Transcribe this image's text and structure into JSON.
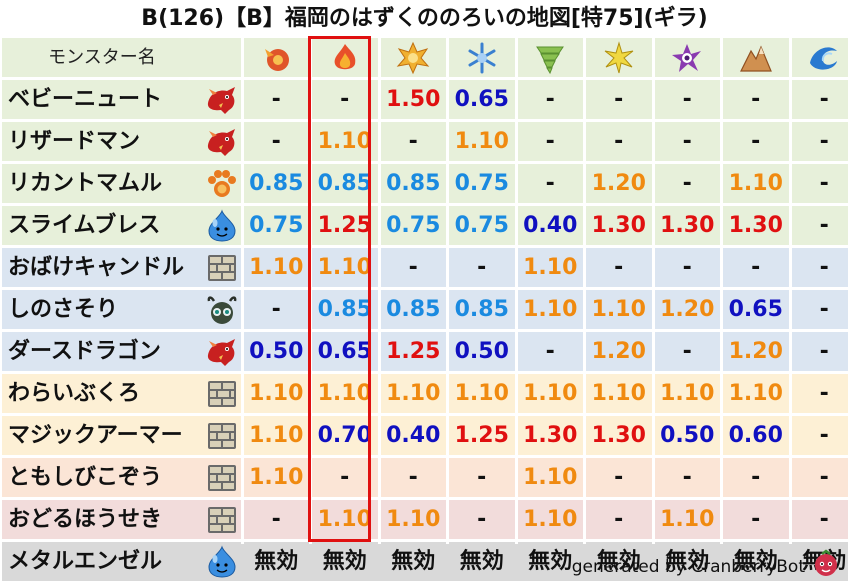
{
  "title": "B(126)【B】福岡のはずくののろいの地図[特75](ギラ)",
  "header": {
    "name_label": "モンスター名",
    "elements": [
      {
        "icon": "fire-orb-icon",
        "color": "#e0552a"
      },
      {
        "icon": "flame-icon",
        "color": "#e8502a"
      },
      {
        "icon": "explosion-icon",
        "color": "#e0b020"
      },
      {
        "icon": "ice-crystal-icon",
        "color": "#4a90e2"
      },
      {
        "icon": "tornado-icon",
        "color": "#7ab040"
      },
      {
        "icon": "lightning-icon",
        "color": "#e0c020"
      },
      {
        "icon": "darkness-swirl-icon",
        "color": "#8a3ab0"
      },
      {
        "icon": "earth-mountain-icon",
        "color": "#c08040"
      },
      {
        "icon": "water-wave-icon",
        "color": "#2070c0"
      }
    ]
  },
  "colors": {
    "orange": "#f08a10",
    "lightblue": "#1a8ae0",
    "red": "#e01010",
    "navy": "#1010c0",
    "dark": "#111111",
    "highlight": "#e01010"
  },
  "rows": [
    {
      "name": "ベビーニュート",
      "icon": "red-dragon-icon",
      "bg": "#e7f0da",
      "cells": [
        {
          "v": "-",
          "c": "dark"
        },
        {
          "v": "-",
          "c": "dark"
        },
        {
          "v": "1.50",
          "c": "red"
        },
        {
          "v": "0.65",
          "c": "navy"
        },
        {
          "v": "-",
          "c": "dark"
        },
        {
          "v": "-",
          "c": "dark"
        },
        {
          "v": "-",
          "c": "dark"
        },
        {
          "v": "-",
          "c": "dark"
        },
        {
          "v": "-",
          "c": "dark"
        }
      ]
    },
    {
      "name": "リザードマン",
      "icon": "red-dragon-icon",
      "bg": "#e7f0da",
      "cells": [
        {
          "v": "-",
          "c": "dark"
        },
        {
          "v": "1.10",
          "c": "orange"
        },
        {
          "v": "-",
          "c": "dark"
        },
        {
          "v": "1.10",
          "c": "orange"
        },
        {
          "v": "-",
          "c": "dark"
        },
        {
          "v": "-",
          "c": "dark"
        },
        {
          "v": "-",
          "c": "dark"
        },
        {
          "v": "-",
          "c": "dark"
        },
        {
          "v": "-",
          "c": "dark"
        }
      ]
    },
    {
      "name": "リカントマムル",
      "icon": "paw-icon",
      "bg": "#e7f0da",
      "cells": [
        {
          "v": "0.85",
          "c": "lightblue"
        },
        {
          "v": "0.85",
          "c": "lightblue"
        },
        {
          "v": "0.85",
          "c": "lightblue"
        },
        {
          "v": "0.75",
          "c": "lightblue"
        },
        {
          "v": "-",
          "c": "dark"
        },
        {
          "v": "1.20",
          "c": "orange"
        },
        {
          "v": "-",
          "c": "dark"
        },
        {
          "v": "1.10",
          "c": "orange"
        },
        {
          "v": "-",
          "c": "dark"
        }
      ]
    },
    {
      "name": "スライムブレス",
      "icon": "slime-icon",
      "bg": "#e7f0da",
      "cells": [
        {
          "v": "0.75",
          "c": "lightblue"
        },
        {
          "v": "1.25",
          "c": "red"
        },
        {
          "v": "0.75",
          "c": "lightblue"
        },
        {
          "v": "0.75",
          "c": "lightblue"
        },
        {
          "v": "0.40",
          "c": "navy"
        },
        {
          "v": "1.30",
          "c": "red"
        },
        {
          "v": "1.30",
          "c": "red"
        },
        {
          "v": "1.30",
          "c": "red"
        },
        {
          "v": "-",
          "c": "dark"
        }
      ]
    },
    {
      "name": "おばけキャンドル",
      "icon": "brick-icon",
      "bg": "#dbe5f1",
      "cells": [
        {
          "v": "1.10",
          "c": "orange"
        },
        {
          "v": "1.10",
          "c": "orange"
        },
        {
          "v": "-",
          "c": "dark"
        },
        {
          "v": "-",
          "c": "dark"
        },
        {
          "v": "1.10",
          "c": "orange"
        },
        {
          "v": "-",
          "c": "dark"
        },
        {
          "v": "-",
          "c": "dark"
        },
        {
          "v": "-",
          "c": "dark"
        },
        {
          "v": "-",
          "c": "dark"
        }
      ]
    },
    {
      "name": "しのさそり",
      "icon": "bug-icon",
      "bg": "#dbe5f1",
      "cells": [
        {
          "v": "-",
          "c": "dark"
        },
        {
          "v": "0.85",
          "c": "lightblue"
        },
        {
          "v": "0.85",
          "c": "lightblue"
        },
        {
          "v": "0.85",
          "c": "lightblue"
        },
        {
          "v": "1.10",
          "c": "orange"
        },
        {
          "v": "1.10",
          "c": "orange"
        },
        {
          "v": "1.20",
          "c": "orange"
        },
        {
          "v": "0.65",
          "c": "navy"
        },
        {
          "v": "-",
          "c": "dark"
        }
      ]
    },
    {
      "name": "ダースドラゴン",
      "icon": "red-dragon-icon",
      "bg": "#dbe5f1",
      "cells": [
        {
          "v": "0.50",
          "c": "navy"
        },
        {
          "v": "0.65",
          "c": "navy"
        },
        {
          "v": "1.25",
          "c": "red"
        },
        {
          "v": "0.50",
          "c": "navy"
        },
        {
          "v": "-",
          "c": "dark"
        },
        {
          "v": "1.20",
          "c": "orange"
        },
        {
          "v": "-",
          "c": "dark"
        },
        {
          "v": "1.20",
          "c": "orange"
        },
        {
          "v": "-",
          "c": "dark"
        }
      ]
    },
    {
      "name": "わらいぶくろ",
      "icon": "brick-icon",
      "bg": "#fdf0d5",
      "cells": [
        {
          "v": "1.10",
          "c": "orange"
        },
        {
          "v": "1.10",
          "c": "orange"
        },
        {
          "v": "1.10",
          "c": "orange"
        },
        {
          "v": "1.10",
          "c": "orange"
        },
        {
          "v": "1.10",
          "c": "orange"
        },
        {
          "v": "1.10",
          "c": "orange"
        },
        {
          "v": "1.10",
          "c": "orange"
        },
        {
          "v": "1.10",
          "c": "orange"
        },
        {
          "v": "-",
          "c": "dark"
        }
      ]
    },
    {
      "name": "マジックアーマー",
      "icon": "brick-icon",
      "bg": "#fdf0d5",
      "cells": [
        {
          "v": "1.10",
          "c": "orange"
        },
        {
          "v": "0.70",
          "c": "navy"
        },
        {
          "v": "0.40",
          "c": "navy"
        },
        {
          "v": "1.25",
          "c": "red"
        },
        {
          "v": "1.30",
          "c": "red"
        },
        {
          "v": "1.30",
          "c": "red"
        },
        {
          "v": "0.50",
          "c": "navy"
        },
        {
          "v": "0.60",
          "c": "navy"
        },
        {
          "v": "-",
          "c": "dark"
        }
      ]
    },
    {
      "name": "ともしびこぞう",
      "icon": "brick-icon",
      "bg": "#fbe5d6",
      "cells": [
        {
          "v": "1.10",
          "c": "orange"
        },
        {
          "v": "-",
          "c": "dark"
        },
        {
          "v": "-",
          "c": "dark"
        },
        {
          "v": "-",
          "c": "dark"
        },
        {
          "v": "1.10",
          "c": "orange"
        },
        {
          "v": "-",
          "c": "dark"
        },
        {
          "v": "-",
          "c": "dark"
        },
        {
          "v": "-",
          "c": "dark"
        },
        {
          "v": "-",
          "c": "dark"
        }
      ]
    },
    {
      "name": "おどるほうせき",
      "icon": "brick-icon",
      "bg": "#f2dcdb",
      "cells": [
        {
          "v": "-",
          "c": "dark"
        },
        {
          "v": "1.10",
          "c": "orange"
        },
        {
          "v": "1.10",
          "c": "orange"
        },
        {
          "v": "-",
          "c": "dark"
        },
        {
          "v": "1.10",
          "c": "orange"
        },
        {
          "v": "-",
          "c": "dark"
        },
        {
          "v": "1.10",
          "c": "orange"
        },
        {
          "v": "-",
          "c": "dark"
        },
        {
          "v": "-",
          "c": "dark"
        }
      ]
    },
    {
      "name": "メタルエンゼル",
      "icon": "slime-icon",
      "bg": "#d9d9d9",
      "cells": [
        {
          "v": "無効",
          "c": "dark"
        },
        {
          "v": "無効",
          "c": "dark"
        },
        {
          "v": "無効",
          "c": "dark"
        },
        {
          "v": "無効",
          "c": "dark"
        },
        {
          "v": "無効",
          "c": "dark"
        },
        {
          "v": "無効",
          "c": "dark"
        },
        {
          "v": "無効",
          "c": "dark"
        },
        {
          "v": "無効",
          "c": "dark"
        },
        {
          "v": "無効",
          "c": "dark"
        }
      ]
    }
  ],
  "footer": "generated by CranberryBot"
}
